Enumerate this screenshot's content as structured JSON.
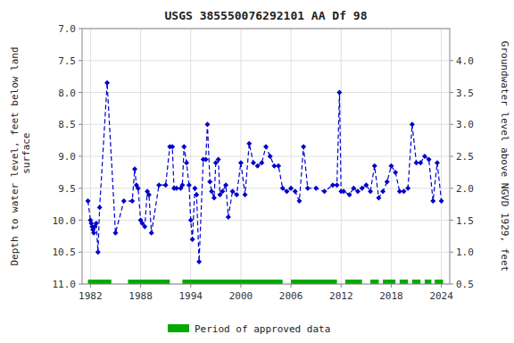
{
  "chart_data": {
    "type": "line",
    "title": "USGS 385550076292101 AA Df  98",
    "ylabel": "Depth to water level, feet below land\n surface",
    "y2label": "Groundwater level above NGVD 1929, feet",
    "xlim": [
      1981,
      2025
    ],
    "xticks": [
      1982,
      1988,
      1994,
      2000,
      2006,
      2012,
      2018,
      2024
    ],
    "ylim": [
      11.0,
      7.0
    ],
    "yticks": [
      {
        "value": 7.0,
        "label": "7.0"
      },
      7.5,
      {
        "value": 8.0,
        "label": "8.0"
      },
      8.5,
      {
        "value": 9.0,
        "label": "9.0"
      },
      9.5,
      {
        "value": 10.0,
        "label": "10.0"
      },
      10.5,
      {
        "value": 11.0,
        "label": "11.0"
      }
    ],
    "y2lim": [
      0.5,
      4.5
    ],
    "y2ticks": [
      0.5,
      {
        "value": 1.0,
        "label": "1.0"
      },
      1.5,
      {
        "value": 2.0,
        "label": "2.0"
      },
      2.5,
      {
        "value": 3.0,
        "label": "3.0"
      },
      3.5,
      {
        "value": 4.0,
        "label": "4.0"
      }
    ],
    "grid": true,
    "legend": "bottom",
    "series": [
      {
        "color": "#0000cc",
        "marker": "diamond",
        "line_style": "dashed",
        "x": [
          1981.7,
          1982.0,
          1982.1,
          1982.2,
          1982.3,
          1982.4,
          1982.5,
          1982.7,
          1982.9,
          1983.1,
          1984.0,
          1985.0,
          1986.0,
          1987.0,
          1987.3,
          1987.5,
          1987.7,
          1988.0,
          1988.2,
          1988.5,
          1988.8,
          1989.0,
          1989.3,
          1990.2,
          1991.0,
          1991.5,
          1991.8,
          1992.0,
          1992.3,
          1992.8,
          1993.0,
          1993.2,
          1993.5,
          1993.8,
          1994.0,
          1994.2,
          1994.5,
          1994.7,
          1995.0,
          1995.5,
          1995.8,
          1996.0,
          1996.3,
          1996.5,
          1996.8,
          1997.0,
          1997.3,
          1997.5,
          1997.8,
          1998.2,
          1998.5,
          1999.0,
          1999.5,
          2000.0,
          2000.5,
          2001.0,
          2001.5,
          2002.0,
          2002.5,
          2003.0,
          2003.5,
          2004.0,
          2004.5,
          2005.0,
          2005.5,
          2006.0,
          2006.5,
          2007.0,
          2007.5,
          2008.0,
          2009.0,
          2010.0,
          2011.0,
          2011.5,
          2011.8,
          2012.0,
          2012.3,
          2013.0,
          2013.5,
          2014.0,
          2014.5,
          2015.0,
          2015.5,
          2016.0,
          2016.5,
          2017.0,
          2017.5,
          2018.0,
          2018.5,
          2019.0,
          2019.5,
          2020.0,
          2020.5,
          2021.0,
          2021.5,
          2022.0,
          2022.5,
          2023.0,
          2023.5,
          2024.0
        ],
        "values": [
          9.7,
          10.0,
          10.05,
          10.1,
          10.15,
          10.2,
          10.1,
          10.05,
          10.5,
          9.8,
          7.85,
          10.2,
          9.7,
          9.7,
          9.2,
          9.45,
          9.5,
          10.0,
          10.05,
          10.1,
          9.55,
          9.6,
          10.2,
          9.45,
          9.45,
          8.85,
          8.85,
          9.5,
          9.5,
          9.5,
          9.45,
          8.85,
          9.1,
          9.45,
          10.0,
          10.3,
          9.5,
          9.6,
          10.65,
          9.05,
          9.05,
          8.5,
          9.4,
          9.55,
          9.65,
          9.1,
          9.05,
          9.6,
          9.55,
          9.45,
          9.95,
          9.55,
          9.6,
          9.1,
          9.6,
          8.8,
          9.1,
          9.15,
          9.1,
          8.85,
          9.0,
          9.15,
          9.15,
          9.5,
          9.55,
          9.5,
          9.55,
          9.7,
          8.85,
          9.5,
          9.5,
          9.55,
          9.45,
          9.45,
          8.0,
          9.55,
          9.55,
          9.6,
          9.5,
          9.55,
          9.5,
          9.45,
          9.55,
          9.15,
          9.65,
          9.55,
          9.4,
          9.15,
          9.25,
          9.55,
          9.55,
          9.5,
          8.5,
          9.1,
          9.1,
          9.0,
          9.05,
          9.7,
          9.1,
          9.7
        ]
      },
      {
        "name": "Period of approved data",
        "type": "segments",
        "color": "#00aa00",
        "y": 11.0,
        "segments": [
          [
            1981.7,
            1984.5
          ],
          [
            1986.5,
            1991.5
          ],
          [
            1993.0,
            2005.0
          ],
          [
            2006.0,
            2011.5
          ],
          [
            2012.5,
            2014.5
          ],
          [
            2015.5,
            2016.5
          ],
          [
            2017.0,
            2018.5
          ],
          [
            2019.0,
            2020.0
          ],
          [
            2020.5,
            2021.5
          ],
          [
            2022.0,
            2022.8
          ],
          [
            2023.2,
            2024.2
          ]
        ]
      }
    ]
  }
}
